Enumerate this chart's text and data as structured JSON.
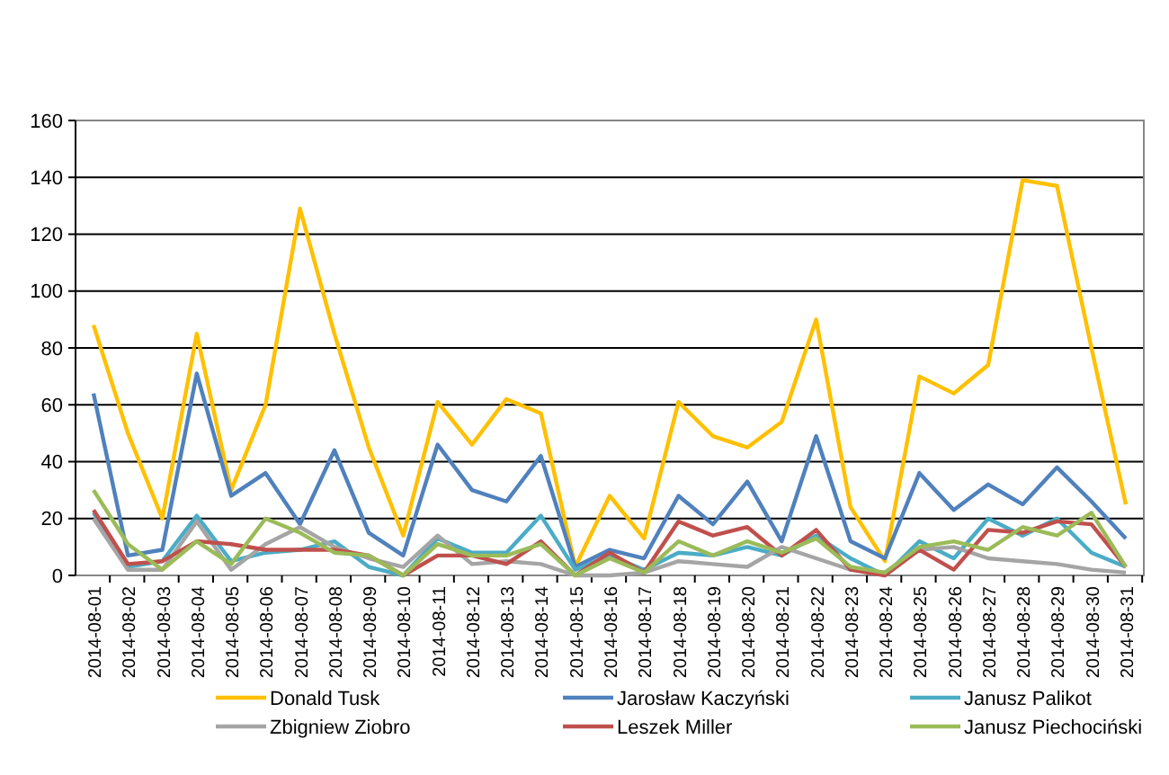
{
  "chart_data": {
    "type": "line",
    "categories": [
      "2014-08-01",
      "2014-08-02",
      "2014-08-03",
      "2014-08-04",
      "2014-08-05",
      "2014-08-06",
      "2014-08-07",
      "2014-08-08",
      "2014-08-09",
      "2014-08-10",
      "2014-08-11",
      "2014-08-12",
      "2014-08-13",
      "2014-08-14",
      "2014-08-15",
      "2014-08-16",
      "2014-08-17",
      "2014-08-18",
      "2014-08-19",
      "2014-08-20",
      "2014-08-21",
      "2014-08-22",
      "2014-08-23",
      "2014-08-24",
      "2014-08-25",
      "2014-08-26",
      "2014-08-27",
      "2014-08-28",
      "2014-08-29",
      "2014-08-30",
      "2014-08-31"
    ],
    "ylim": [
      0,
      160
    ],
    "yticks": [
      0,
      20,
      40,
      60,
      80,
      100,
      120,
      140,
      160
    ],
    "grid": "y",
    "legend": "bottom",
    "marker": "none",
    "line_style": "solid",
    "series": [
      {
        "name": "Donald Tusk",
        "color": "#ffc000",
        "values": [
          88,
          50,
          20,
          85,
          30,
          60,
          129,
          85,
          45,
          14,
          61,
          46,
          62,
          57,
          3,
          28,
          13,
          61,
          49,
          45,
          54,
          90,
          24,
          5,
          70,
          64,
          74,
          139,
          137,
          80,
          25
        ]
      },
      {
        "name": "Jarosław Kaczyński",
        "color": "#4f81bd",
        "values": [
          64,
          7,
          9,
          71,
          28,
          36,
          18,
          44,
          15,
          7,
          46,
          30,
          26,
          42,
          3,
          9,
          6,
          28,
          18,
          33,
          12,
          49,
          12,
          6,
          36,
          23,
          32,
          25,
          38,
          26,
          13
        ]
      },
      {
        "name": "Janusz Palikot",
        "color": "#4bacc6",
        "values": [
          22,
          3,
          5,
          21,
          5,
          8,
          9,
          12,
          3,
          0,
          13,
          8,
          8,
          21,
          2,
          7,
          2,
          8,
          7,
          10,
          7,
          14,
          6,
          0,
          12,
          6,
          20,
          14,
          20,
          8,
          3
        ]
      },
      {
        "name": "Zbigniew Ziobro",
        "color": "#a5a5a5",
        "values": [
          20,
          2,
          2,
          19,
          2,
          11,
          17,
          10,
          6,
          3,
          14,
          4,
          5,
          4,
          0,
          0,
          1,
          5,
          4,
          3,
          10,
          6,
          2,
          1,
          9,
          10,
          6,
          5,
          4,
          2,
          1
        ]
      },
      {
        "name": "Leszek Miller",
        "color": "#c0504d",
        "values": [
          23,
          4,
          5,
          12,
          11,
          9,
          9,
          9,
          7,
          0,
          7,
          7,
          4,
          12,
          0,
          8,
          1,
          19,
          14,
          17,
          7,
          16,
          2,
          0,
          9,
          2,
          16,
          15,
          19,
          18,
          3
        ]
      },
      {
        "name": "Janusz Piechociński",
        "color": "#9bbb59",
        "values": [
          30,
          11,
          2,
          12,
          4,
          20,
          15,
          8,
          7,
          0,
          11,
          7,
          7,
          11,
          0,
          6,
          1,
          12,
          7,
          12,
          8,
          13,
          3,
          1,
          10,
          12,
          9,
          17,
          14,
          22,
          3
        ]
      }
    ]
  }
}
